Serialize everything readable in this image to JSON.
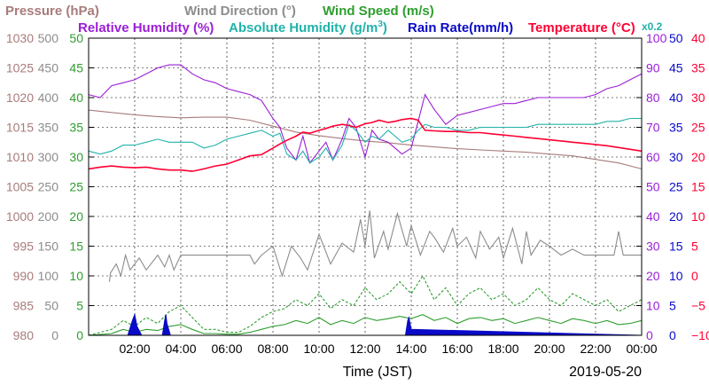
{
  "chart_data": {
    "type": "line",
    "legend": {
      "row1": [
        {
          "label": "Pressure (hPa)",
          "color": "#a97b7b"
        },
        {
          "label": "Wind Direction (°)",
          "color": "#8c8c8c"
        },
        {
          "label": "Wind Speed (m/s)",
          "color": "#2e9e2e"
        }
      ],
      "row2": [
        {
          "label": "Relative Humidity (%)",
          "color": "#9b1fd6"
        },
        {
          "label": "Absolute Humidity (g/m",
          "sup": "3",
          "suffix": ")",
          "color": "#20b2aa"
        },
        {
          "label": "Rain Rate(mm/h)",
          "color": "#0a0ac8"
        },
        {
          "label": "Temperature (°C)",
          "color": "#ff0033"
        }
      ],
      "multiplier": "x0.2"
    },
    "xlabel": "Time (JST)",
    "date_label": "2019-05-20",
    "x_ticks": [
      "02:00",
      "04:00",
      "06:00",
      "08:00",
      "10:00",
      "12:00",
      "14:00",
      "16:00",
      "18:00",
      "20:00",
      "22:00",
      "00:00"
    ],
    "xlim_hours": [
      0,
      24
    ],
    "left_axes": [
      {
        "name": "Pressure",
        "color": "#a97b7b",
        "ticks": [
          "1030",
          "1025",
          "1020",
          "1015",
          "1010",
          "1005",
          "1000",
          "995",
          "990",
          "985",
          "980"
        ],
        "range": [
          980,
          1030
        ]
      },
      {
        "name": "Wind Direction",
        "color": "#8c8c8c",
        "ticks": [
          "500",
          "450",
          "400",
          "350",
          "300",
          "250",
          "200",
          "150",
          "100",
          "50",
          "0"
        ],
        "range": [
          0,
          500
        ]
      },
      {
        "name": "Wind Speed",
        "color": "#2e9e2e",
        "ticks": [
          "50",
          "45",
          "40",
          "35",
          "30",
          "25",
          "20",
          "15",
          "10",
          "5",
          "0"
        ],
        "range": [
          0,
          50
        ]
      }
    ],
    "right_axes": [
      {
        "name": "Relative Humidity",
        "color": "#9b1fd6",
        "ticks": [
          "100",
          "90",
          "80",
          "70",
          "60",
          "50",
          "40",
          "30",
          "20",
          "10",
          "0"
        ],
        "range": [
          0,
          100
        ]
      },
      {
        "name": "Rain Rate",
        "color": "#0a0ac8",
        "ticks": [
          "50",
          "45",
          "40",
          "35",
          "30",
          "25",
          "20",
          "15",
          "10",
          "5",
          "0"
        ],
        "range": [
          0,
          50
        ]
      },
      {
        "name": "Temperature",
        "color": "#ff0033",
        "ticks": [
          "40",
          "35",
          "30",
          "25",
          "20",
          "15",
          "10",
          "5",
          "0",
          "−5",
          "−10"
        ],
        "range": [
          -10,
          40
        ]
      }
    ],
    "series": [
      {
        "name": "Pressure",
        "color": "#a97b7b",
        "x": [
          0,
          1,
          2,
          3,
          4,
          5,
          6,
          7,
          8,
          9,
          10,
          11,
          12,
          13,
          14,
          15,
          16,
          17,
          18,
          19,
          20,
          21,
          22,
          23,
          24
        ],
        "y": [
          1017.9,
          1017.5,
          1017.1,
          1016.8,
          1016.6,
          1016.7,
          1016.7,
          1016.2,
          1015.2,
          1014.2,
          1013.6,
          1013.1,
          1012.7,
          1012.4,
          1012.0,
          1011.7,
          1011.4,
          1011.2,
          1011.0,
          1010.8,
          1010.5,
          1010.2,
          1009.6,
          1009.0,
          1008.0
        ]
      },
      {
        "name": "Wind Direction",
        "color": "#8c8c8c",
        "x": [
          0,
          0.9,
          0.95,
          1.2,
          1.4,
          1.6,
          1.8,
          2,
          2.2,
          2.5,
          3,
          3.3,
          3.5,
          3.7,
          4,
          5,
          6,
          7,
          7.2,
          7.5,
          8,
          8.4,
          8.8,
          9.2,
          9.5,
          10,
          10.5,
          11,
          11.5,
          11.8,
          12,
          12.2,
          12.4,
          12.8,
          13,
          13.4,
          13.8,
          14,
          14.4,
          14.8,
          15,
          15.4,
          15.8,
          16,
          16.4,
          16.8,
          17,
          17.4,
          17.8,
          18,
          18.4,
          18.8,
          19,
          19.2,
          19.6,
          20,
          20.5,
          21,
          21.5,
          22,
          22.5,
          22.8,
          23,
          23.2,
          23.6,
          24
        ],
        "y": [
          null,
          90,
          105,
          120,
          100,
          135,
          110,
          120,
          130,
          110,
          135,
          115,
          135,
          110,
          135,
          135,
          135,
          135,
          120,
          135,
          150,
          100,
          150,
          130,
          110,
          170,
          120,
          155,
          140,
          195,
          150,
          210,
          130,
          175,
          145,
          205,
          150,
          185,
          135,
          175,
          165,
          140,
          180,
          150,
          165,
          130,
          175,
          145,
          165,
          130,
          180,
          120,
          175,
          135,
          160,
          150,
          135,
          145,
          135,
          135,
          135,
          135,
          175,
          135,
          135,
          135
        ]
      },
      {
        "name": "Wind Speed (gust)",
        "color": "#2e9e2e",
        "dash": true,
        "x": [
          0,
          1,
          1.5,
          2,
          2.5,
          3,
          3.5,
          4,
          4.5,
          5,
          5.5,
          6,
          6.5,
          7,
          7.5,
          8,
          8.5,
          9,
          9.5,
          10,
          10.5,
          11,
          11.5,
          12,
          12.5,
          13,
          13.5,
          14,
          14.5,
          15,
          15.5,
          16,
          16.5,
          17,
          17.5,
          18,
          18.5,
          19,
          19.5,
          20,
          20.5,
          21,
          21.5,
          22,
          22.5,
          23,
          23.5,
          24
        ],
        "y": [
          0,
          1,
          2.5,
          1.5,
          3,
          2,
          4,
          5,
          3,
          1,
          1,
          0.5,
          0.5,
          1.5,
          3,
          4,
          4.5,
          6,
          5,
          7,
          4.5,
          6,
          5,
          8,
          6,
          7,
          9,
          7,
          10,
          6,
          8,
          5,
          7,
          8,
          6,
          7,
          5,
          6,
          8,
          6,
          5,
          7,
          6,
          5,
          6,
          4,
          5,
          6
        ]
      },
      {
        "name": "Wind Speed",
        "color": "#2e9e2e",
        "x": [
          0,
          1,
          1.5,
          2,
          2.5,
          3,
          3.5,
          4,
          4.5,
          5,
          5.5,
          6,
          6.5,
          7,
          7.5,
          8,
          8.5,
          9,
          9.5,
          10,
          10.5,
          11,
          11.5,
          12,
          12.5,
          13,
          13.5,
          14,
          14.5,
          15,
          15.5,
          16,
          16.5,
          17,
          17.5,
          18,
          18.5,
          19,
          19.5,
          20,
          20.5,
          21,
          21.5,
          22,
          22.5,
          23,
          23.5,
          24
        ],
        "y": [
          0,
          0.3,
          1,
          0.5,
          1,
          0.8,
          1.5,
          1.8,
          1,
          0.3,
          0.3,
          0.2,
          0.2,
          0.5,
          1,
          1.5,
          1.8,
          2.5,
          2,
          3,
          1.8,
          2.5,
          2,
          3,
          2.5,
          2.8,
          3.2,
          2.8,
          3.5,
          2.5,
          3,
          2,
          2.8,
          3,
          2.5,
          2.8,
          2,
          2.5,
          3,
          2.5,
          2,
          2.8,
          2.5,
          2,
          2.5,
          1.8,
          2,
          2.5
        ]
      },
      {
        "name": "Relative Humidity",
        "color": "#9b1fd6",
        "x": [
          0,
          0.5,
          1,
          1.5,
          2,
          2.5,
          3,
          3.5,
          4,
          4.5,
          5,
          5.5,
          6,
          6.5,
          7,
          7.5,
          8,
          8.3,
          8.6,
          9,
          9.3,
          9.6,
          10,
          10.3,
          10.6,
          11,
          11.3,
          11.6,
          12,
          12.3,
          12.6,
          13,
          13.3,
          13.6,
          14,
          14.3,
          14.6,
          15,
          15.5,
          16,
          16.5,
          17,
          17.5,
          18,
          18.5,
          19,
          19.5,
          20,
          20.5,
          21,
          21.5,
          22,
          22.5,
          23,
          23.5,
          24
        ],
        "y": [
          81,
          80,
          84,
          85,
          86,
          88,
          90,
          91,
          91,
          88,
          86,
          85,
          83,
          82,
          81,
          79,
          73,
          70,
          63,
          59,
          67,
          58,
          62,
          65,
          59,
          66,
          73,
          70,
          60,
          69,
          66,
          65,
          63,
          61,
          63,
          72,
          81,
          76,
          71,
          74,
          75,
          76,
          77,
          78,
          78,
          79,
          80,
          80,
          80,
          80,
          80,
          81,
          83,
          84,
          86,
          88
        ]
      },
      {
        "name": "Absolute Humidity",
        "color": "#20b2aa",
        "x": [
          0,
          0.5,
          1,
          1.5,
          2,
          2.5,
          3,
          3.5,
          4,
          4.5,
          5,
          5.5,
          6,
          6.5,
          7,
          7.5,
          8,
          8.3,
          8.6,
          9,
          9.3,
          9.6,
          10,
          10.3,
          10.6,
          11,
          11.3,
          11.6,
          12,
          12.3,
          12.6,
          13,
          13.3,
          13.6,
          14,
          14.3,
          14.6,
          15,
          15.5,
          16,
          16.5,
          17,
          17.5,
          18,
          18.5,
          19,
          19.5,
          20,
          20.5,
          21,
          21.5,
          22,
          22.5,
          23,
          23.5,
          24
        ],
        "y": [
          62,
          61,
          62,
          64,
          64,
          65,
          66,
          65,
          65,
          65,
          63,
          64,
          66,
          67,
          68,
          69,
          67,
          68,
          61,
          59,
          62,
          58,
          60,
          63,
          59,
          64,
          71,
          69,
          65,
          67,
          66,
          69,
          67,
          65,
          66,
          69,
          71,
          70,
          70,
          69,
          69,
          70,
          70,
          70,
          70,
          70,
          71,
          71,
          71,
          71,
          71,
          71,
          72,
          72,
          73,
          73
        ]
      },
      {
        "name": "Temperature",
        "color": "#ff0033",
        "x": [
          0,
          0.5,
          1,
          1.5,
          2,
          2.5,
          3,
          3.5,
          4,
          4.5,
          5,
          5.5,
          6,
          6.5,
          7,
          7.5,
          8,
          8.3,
          8.6,
          9,
          9.3,
          9.6,
          10,
          10.3,
          10.6,
          11,
          11.3,
          11.6,
          12,
          12.3,
          12.6,
          13,
          13.3,
          13.6,
          14,
          14.3,
          14.6,
          15,
          15.5,
          16,
          16.5,
          17,
          17.5,
          18,
          18.5,
          19,
          19.5,
          20,
          20.5,
          21,
          21.5,
          22,
          22.5,
          23,
          23.5,
          24
        ],
        "y": [
          18.0,
          18.3,
          18.5,
          18.3,
          18.2,
          18.3,
          18.0,
          17.8,
          17.8,
          17.6,
          18.0,
          18.5,
          18.8,
          19.5,
          20.2,
          20.4,
          21.5,
          22.2,
          22.8,
          23.5,
          24.2,
          24.0,
          24.5,
          24.8,
          25.2,
          25.5,
          25.3,
          25.0,
          25.6,
          25.8,
          26.2,
          25.8,
          26.0,
          26.3,
          26.5,
          26.2,
          24.5,
          24.4,
          24.3,
          24.3,
          24.1,
          24.1,
          23.9,
          23.7,
          23.5,
          23.3,
          23.1,
          22.9,
          22.7,
          22.5,
          22.3,
          22.1,
          21.9,
          21.6,
          21.3,
          21.0
        ]
      },
      {
        "name": "Rain Rate",
        "color": "#0a0ac8",
        "x": [
          0,
          1.7,
          1.9,
          2.0,
          2.1,
          2.3,
          3.2,
          3.3,
          3.35,
          3.4,
          3.55,
          6,
          13.75,
          13.85,
          13.9,
          14.0,
          24
        ],
        "y": [
          0,
          0,
          2.5,
          3.5,
          1.5,
          0,
          0,
          2.5,
          3.5,
          2,
          0,
          0,
          0,
          2.5,
          3,
          1,
          0
        ]
      }
    ]
  }
}
